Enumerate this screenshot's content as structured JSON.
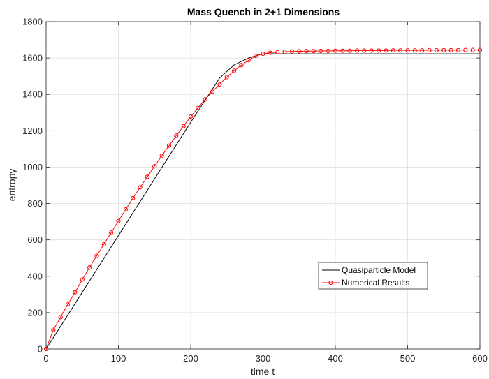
{
  "chart_data": {
    "type": "line",
    "title": "Mass Quench in 2+1 Dimensions",
    "xlabel": "time t",
    "ylabel": "entropy",
    "xlim": [
      0,
      600
    ],
    "ylim": [
      0,
      1800
    ],
    "xticks": [
      0,
      100,
      200,
      300,
      400,
      500,
      600
    ],
    "yticks": [
      0,
      200,
      400,
      600,
      800,
      1000,
      1200,
      1400,
      1600,
      1800
    ],
    "grid": true,
    "legend_position": "lower-right",
    "series": [
      {
        "name": "Quasiparticle Model",
        "color": "#000000",
        "marker": "none",
        "x": [
          0,
          200,
          240,
          260,
          280,
          295,
          300,
          310,
          600
        ],
        "y": [
          0,
          1247,
          1490,
          1562,
          1600,
          1618,
          1622,
          1623,
          1623
        ]
      },
      {
        "name": "Numerical Results",
        "color": "#ff0000",
        "marker": "circle",
        "x": [
          0,
          10,
          20,
          30,
          40,
          50,
          60,
          70,
          80,
          90,
          100,
          110,
          120,
          130,
          140,
          150,
          160,
          170,
          180,
          190,
          200,
          210,
          220,
          230,
          240,
          250,
          260,
          270,
          280,
          290,
          300,
          310,
          320,
          330,
          340,
          350,
          360,
          370,
          380,
          390,
          400,
          410,
          420,
          430,
          440,
          450,
          460,
          470,
          480,
          490,
          500,
          510,
          520,
          530,
          540,
          550,
          560,
          570,
          580,
          590,
          600
        ],
        "y": [
          0,
          105,
          175,
          245,
          312,
          382,
          448,
          512,
          576,
          640,
          703,
          767,
          829,
          889,
          947,
          1005,
          1062,
          1118,
          1173,
          1225,
          1278,
          1325,
          1373,
          1415,
          1455,
          1495,
          1530,
          1561,
          1588,
          1612,
          1623,
          1629,
          1632,
          1634,
          1636,
          1637,
          1638,
          1638,
          1639,
          1639,
          1640,
          1640,
          1640,
          1641,
          1641,
          1641,
          1641,
          1641,
          1642,
          1642,
          1642,
          1642,
          1642,
          1643,
          1643,
          1643,
          1643,
          1643,
          1644,
          1644,
          1644
        ]
      }
    ]
  }
}
